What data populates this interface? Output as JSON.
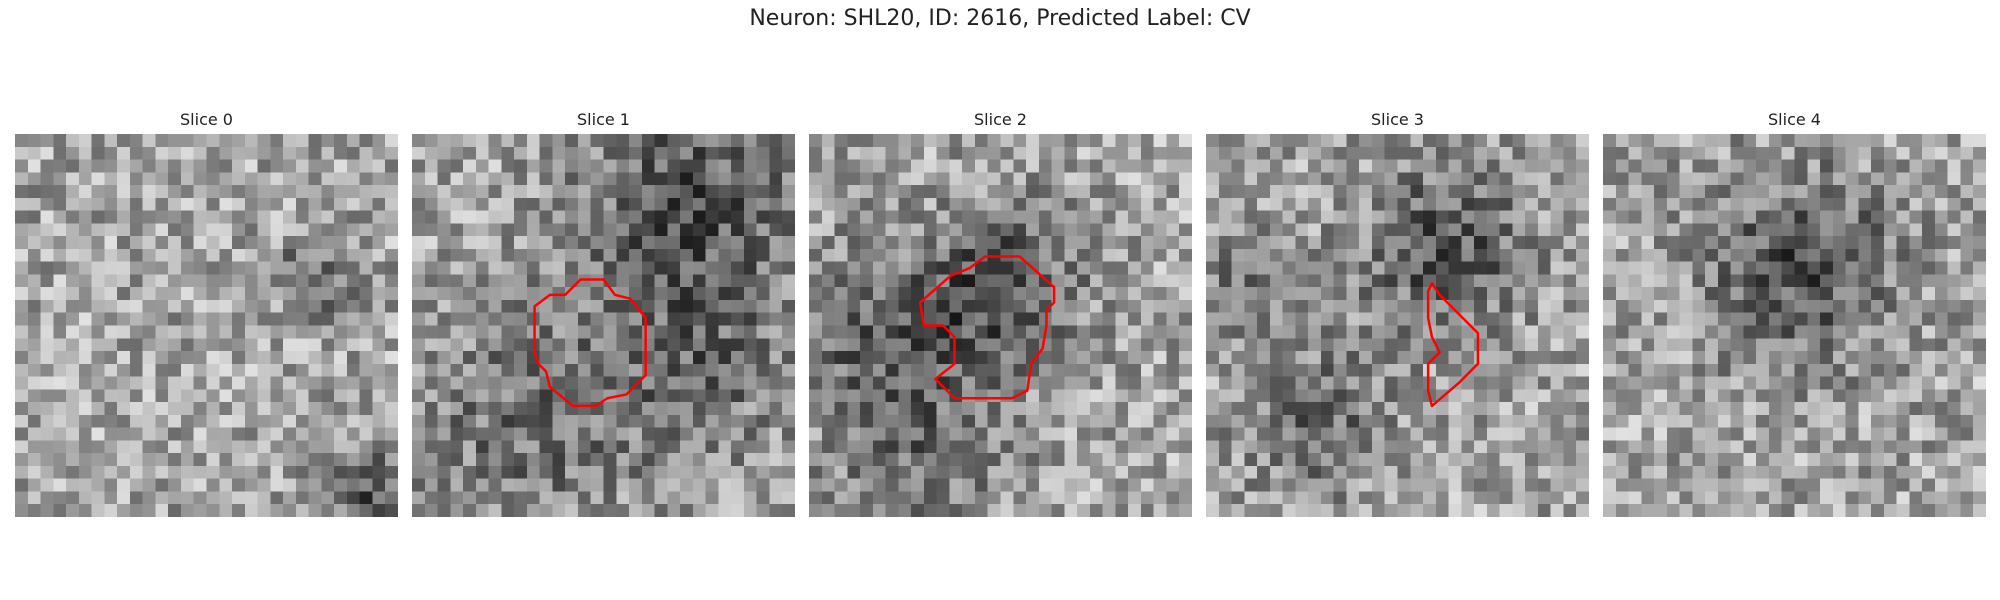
{
  "figure": {
    "title": "Neuron: SHL20, ID: 2616, Predicted Label: CV",
    "contour_color": "#ff0000",
    "slices": [
      {
        "label": "Slice 0",
        "seed": 11,
        "dark_blobs": [
          [
            0.78,
            0.37,
            0.1,
            0.45
          ],
          [
            0.95,
            0.95,
            0.12,
            0.55
          ]
        ]
      },
      {
        "label": "Slice 1",
        "seed": 23,
        "dark_blobs": [
          [
            0.72,
            0.17,
            0.28,
            0.55
          ],
          [
            0.3,
            0.75,
            0.3,
            0.35
          ],
          [
            0.75,
            0.6,
            0.25,
            0.35
          ]
        ],
        "contour": [
          [
            0.44,
            0.38
          ],
          [
            0.5,
            0.38
          ],
          [
            0.53,
            0.42
          ],
          [
            0.57,
            0.43
          ],
          [
            0.61,
            0.48
          ],
          [
            0.61,
            0.63
          ],
          [
            0.58,
            0.66
          ],
          [
            0.56,
            0.68
          ],
          [
            0.51,
            0.69
          ],
          [
            0.48,
            0.71
          ],
          [
            0.42,
            0.71
          ],
          [
            0.36,
            0.66
          ],
          [
            0.35,
            0.62
          ],
          [
            0.33,
            0.6
          ],
          [
            0.32,
            0.57
          ],
          [
            0.32,
            0.45
          ],
          [
            0.36,
            0.42
          ],
          [
            0.4,
            0.42
          ]
        ]
      },
      {
        "label": "Slice 2",
        "seed": 37,
        "dark_blobs": [
          [
            0.5,
            0.4,
            0.2,
            0.6
          ],
          [
            0.15,
            0.5,
            0.22,
            0.4
          ],
          [
            0.3,
            0.8,
            0.25,
            0.35
          ]
        ],
        "contour": [
          [
            0.37,
            0.37
          ],
          [
            0.42,
            0.35
          ],
          [
            0.46,
            0.32
          ],
          [
            0.55,
            0.32
          ],
          [
            0.64,
            0.4
          ],
          [
            0.64,
            0.44
          ],
          [
            0.62,
            0.46
          ],
          [
            0.62,
            0.5
          ],
          [
            0.61,
            0.56
          ],
          [
            0.58,
            0.6
          ],
          [
            0.57,
            0.67
          ],
          [
            0.53,
            0.69
          ],
          [
            0.38,
            0.69
          ],
          [
            0.33,
            0.64
          ],
          [
            0.38,
            0.6
          ],
          [
            0.38,
            0.53
          ],
          [
            0.35,
            0.5
          ],
          [
            0.3,
            0.5
          ],
          [
            0.29,
            0.44
          ]
        ]
      },
      {
        "label": "Slice 3",
        "seed": 53,
        "dark_blobs": [
          [
            0.62,
            0.3,
            0.22,
            0.55
          ],
          [
            0.28,
            0.75,
            0.18,
            0.45
          ],
          [
            0.1,
            0.4,
            0.12,
            0.35
          ]
        ],
        "contour": [
          [
            0.59,
            0.39
          ],
          [
            0.61,
            0.42
          ],
          [
            0.66,
            0.47
          ],
          [
            0.71,
            0.52
          ],
          [
            0.71,
            0.6
          ],
          [
            0.66,
            0.65
          ],
          [
            0.59,
            0.71
          ],
          [
            0.58,
            0.67
          ],
          [
            0.58,
            0.6
          ],
          [
            0.61,
            0.57
          ],
          [
            0.59,
            0.53
          ],
          [
            0.58,
            0.48
          ],
          [
            0.58,
            0.41
          ]
        ]
      },
      {
        "label": "Slice 4",
        "seed": 71,
        "dark_blobs": [
          [
            0.52,
            0.35,
            0.25,
            0.55
          ]
        ]
      }
    ]
  }
}
